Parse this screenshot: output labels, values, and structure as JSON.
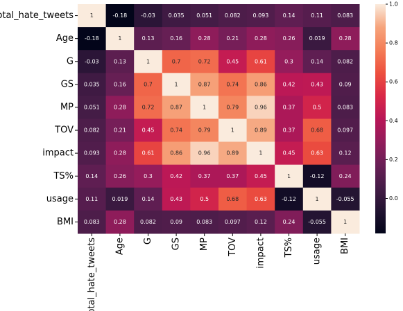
{
  "chart_data": {
    "type": "heatmap",
    "x_categories": [
      "total_hate_tweets",
      "Age",
      "G",
      "GS",
      "MP",
      "TOV",
      "impact",
      "TS%",
      "usage",
      "BMI"
    ],
    "y_categories": [
      "total_hate_tweets",
      "Age",
      "G",
      "GS",
      "MP",
      "TOV",
      "impact",
      "TS%",
      "usage",
      "BMI"
    ],
    "values": [
      [
        1,
        -0.18,
        -0.03,
        0.035,
        0.051,
        0.082,
        0.093,
        0.14,
        0.11,
        0.083
      ],
      [
        -0.18,
        1,
        0.13,
        0.16,
        0.28,
        0.21,
        0.28,
        0.26,
        0.019,
        0.28
      ],
      [
        -0.03,
        0.13,
        1,
        0.7,
        0.72,
        0.45,
        0.61,
        0.3,
        0.14,
        0.082
      ],
      [
        0.035,
        0.16,
        0.7,
        1,
        0.87,
        0.74,
        0.86,
        0.42,
        0.43,
        0.09
      ],
      [
        0.051,
        0.28,
        0.72,
        0.87,
        1,
        0.79,
        0.96,
        0.37,
        0.5,
        0.083
      ],
      [
        0.082,
        0.21,
        0.45,
        0.74,
        0.79,
        1,
        0.89,
        0.37,
        0.68,
        0.097
      ],
      [
        0.093,
        0.28,
        0.61,
        0.86,
        0.96,
        0.89,
        1,
        0.45,
        0.63,
        0.12
      ],
      [
        0.14,
        0.26,
        0.3,
        0.42,
        0.37,
        0.37,
        0.45,
        1,
        -0.12,
        0.24
      ],
      [
        0.11,
        0.019,
        0.14,
        0.43,
        0.5,
        0.68,
        0.63,
        -0.12,
        1,
        -0.055
      ],
      [
        0.083,
        0.28,
        0.082,
        0.09,
        0.083,
        0.097,
        0.12,
        0.24,
        -0.055,
        1
      ]
    ],
    "clim": [
      -0.18,
      1
    ],
    "cticks": [
      {
        "value": 0,
        "label": "0.0"
      },
      0.2,
      0.4,
      0.6,
      0.8,
      {
        "value": 1,
        "label": "1.0"
      }
    ],
    "colormap": [
      "#03051a",
      "#221331",
      "#451c47",
      "#6a1f56",
      "#921c5b",
      "#b91657",
      "#d92847",
      "#ed503e",
      "#f47d57",
      "#f6a47c",
      "#faebdd"
    ]
  }
}
